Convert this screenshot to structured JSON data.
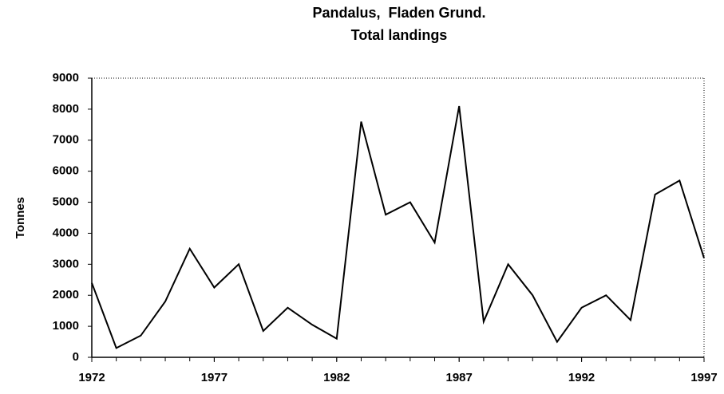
{
  "chart_data": {
    "type": "line",
    "title": "Pandalus,  Fladen Grund.",
    "subtitle": "Total landings",
    "y_label": "Tonnes",
    "x": [
      1972,
      1973,
      1974,
      1975,
      1976,
      1977,
      1978,
      1979,
      1980,
      1981,
      1982,
      1983,
      1984,
      1985,
      1986,
      1987,
      1988,
      1989,
      1990,
      1991,
      1992,
      1993,
      1994,
      1995,
      1996,
      1997
    ],
    "series": [
      {
        "color": "#000000",
        "values": [
          2400,
          300,
          700,
          1800,
          3500,
          2250,
          3000,
          850,
          1600,
          1050,
          600,
          7600,
          4600,
          5000,
          3700,
          8100,
          1150,
          3000,
          2000,
          500,
          1600,
          2000,
          1200,
          5250,
          5700,
          3200
        ]
      }
    ],
    "xlim": [
      1972,
      1997
    ],
    "xticks": [
      1972,
      1977,
      1982,
      1987,
      1992,
      1997
    ],
    "ylim": [
      0,
      9000
    ],
    "yticks": [
      0,
      1000,
      2000,
      3000,
      4000,
      5000,
      6000,
      7000,
      8000,
      9000
    ]
  }
}
